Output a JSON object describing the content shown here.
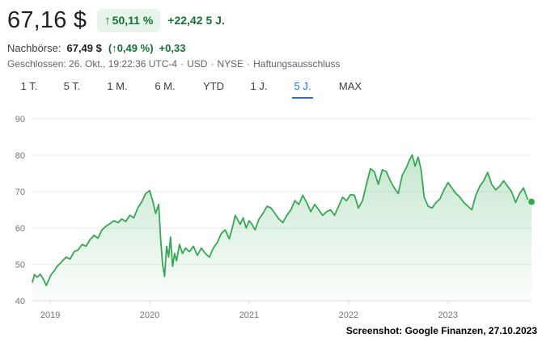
{
  "quote": {
    "price": "67,16 $",
    "change_percent": "50,11 %",
    "change_absolute": "+22,42",
    "change_period": "5 J.",
    "after_hours_label": "Nachbörse:",
    "after_hours_price": "67,49 $",
    "after_hours_change_percent": "0,49 %",
    "after_hours_change_absolute": "+0,33",
    "meta": [
      "Geschlossen: 26. Okt., 19:22:36 UTC-4",
      "USD",
      "NYSE",
      "Haftungsausschluss"
    ],
    "meta_separator": "·",
    "up_color": "#137333",
    "up_bg_color": "#e6f4ea"
  },
  "tabs": [
    {
      "label": "1 T.",
      "active": false
    },
    {
      "label": "5 T.",
      "active": false
    },
    {
      "label": "1 M.",
      "active": false
    },
    {
      "label": "6 M.",
      "active": false
    },
    {
      "label": "YTD",
      "active": false
    },
    {
      "label": "1 J.",
      "active": false
    },
    {
      "label": "5 J.",
      "active": true
    },
    {
      "label": "MAX",
      "active": false
    }
  ],
  "chart_data": {
    "type": "area",
    "title": "",
    "xlabel": "",
    "ylabel": "",
    "x_ticks": [
      "2019",
      "2020",
      "2021",
      "2022",
      "2023"
    ],
    "y_ticks": [
      40,
      50,
      60,
      70,
      80,
      90
    ],
    "ylim": [
      40,
      90
    ],
    "xlim": [
      2018.82,
      2023.84
    ],
    "grid": "horizontal",
    "line_color": "#34a853",
    "fill_color": "#34a853",
    "series": [
      {
        "x": [
          2018.82,
          2018.84,
          2018.87,
          2018.9,
          2018.93,
          2018.96,
          2018.98,
          2019.01,
          2019.04,
          2019.07,
          2019.1,
          2019.13,
          2019.16,
          2019.2,
          2019.24,
          2019.28,
          2019.32,
          2019.36,
          2019.4,
          2019.44,
          2019.48,
          2019.52,
          2019.56,
          2019.6,
          2019.64,
          2019.68,
          2019.72,
          2019.76,
          2019.8,
          2019.84,
          2019.88,
          2019.92,
          2019.96,
          2020.0,
          2020.03,
          2020.06,
          2020.09,
          2020.11,
          2020.13,
          2020.15,
          2020.17,
          2020.19,
          2020.21,
          2020.23,
          2020.25,
          2020.27,
          2020.3,
          2020.33,
          2020.36,
          2020.4,
          2020.44,
          2020.48,
          2020.52,
          2020.56,
          2020.6,
          2020.64,
          2020.68,
          2020.72,
          2020.76,
          2020.8,
          2020.84,
          2020.86,
          2020.88,
          2020.91,
          2020.94,
          2020.97,
          2021.0,
          2021.03,
          2021.06,
          2021.1,
          2021.14,
          2021.18,
          2021.22,
          2021.26,
          2021.3,
          2021.34,
          2021.38,
          2021.42,
          2021.46,
          2021.5,
          2021.54,
          2021.58,
          2021.62,
          2021.66,
          2021.7,
          2021.74,
          2021.78,
          2021.82,
          2021.86,
          2021.9,
          2021.94,
          2021.98,
          2022.02,
          2022.06,
          2022.1,
          2022.14,
          2022.18,
          2022.22,
          2022.26,
          2022.3,
          2022.34,
          2022.38,
          2022.42,
          2022.46,
          2022.5,
          2022.54,
          2022.58,
          2022.61,
          2022.64,
          2022.67,
          2022.7,
          2022.73,
          2022.76,
          2022.8,
          2022.84,
          2022.88,
          2022.92,
          2022.96,
          2023.0,
          2023.04,
          2023.08,
          2023.12,
          2023.16,
          2023.2,
          2023.24,
          2023.28,
          2023.32,
          2023.36,
          2023.4,
          2023.44,
          2023.48,
          2023.52,
          2023.56,
          2023.6,
          2023.64,
          2023.68,
          2023.72,
          2023.76,
          2023.8,
          2023.84
        ],
        "y": [
          45.0,
          47.2,
          46.5,
          47.3,
          46.0,
          44.2,
          45.5,
          47.3,
          48.2,
          49.5,
          50.3,
          51.2,
          52.0,
          51.5,
          53.5,
          54.0,
          55.5,
          55.0,
          56.8,
          58.0,
          57.2,
          59.5,
          60.5,
          61.2,
          62.0,
          61.5,
          62.5,
          61.8,
          63.5,
          62.8,
          65.5,
          67.2,
          69.5,
          70.3,
          67.5,
          64.0,
          66.5,
          57.0,
          50.0,
          46.7,
          55.0,
          52.0,
          57.5,
          49.5,
          53.0,
          51.0,
          55.5,
          53.0,
          54.5,
          53.5,
          55.0,
          52.5,
          54.5,
          53.0,
          52.0,
          54.5,
          56.0,
          58.5,
          59.5,
          57.0,
          61.0,
          63.5,
          62.5,
          61.0,
          62.8,
          60.0,
          62.0,
          61.0,
          59.5,
          62.5,
          64.0,
          66.0,
          65.5,
          64.0,
          62.5,
          61.5,
          63.5,
          65.0,
          67.5,
          66.5,
          69.0,
          67.0,
          64.5,
          66.5,
          65.0,
          63.5,
          64.5,
          65.0,
          63.5,
          66.0,
          68.5,
          67.5,
          69.2,
          69.0,
          65.5,
          67.5,
          72.0,
          76.3,
          75.5,
          72.0,
          76.0,
          75.5,
          73.0,
          71.0,
          69.5,
          74.5,
          76.5,
          78.5,
          80.1,
          77.0,
          79.5,
          76.0,
          68.5,
          66.0,
          65.5,
          67.0,
          68.0,
          70.5,
          72.5,
          71.0,
          69.5,
          68.5,
          67.0,
          66.0,
          65.0,
          69.0,
          71.5,
          73.0,
          75.3,
          72.0,
          70.5,
          71.5,
          73.0,
          71.5,
          70.0,
          67.0,
          69.5,
          71.0,
          68.0,
          67.2
        ]
      }
    ]
  },
  "caption": "Screenshot: Google Finanzen, 27.10.2023"
}
